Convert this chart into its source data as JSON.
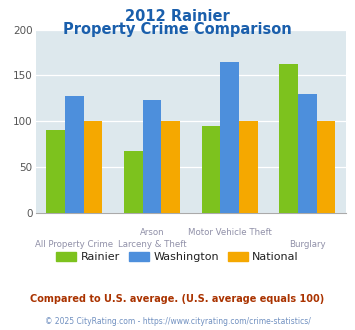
{
  "title_line1": "2012 Rainier",
  "title_line2": "Property Crime Comparison",
  "cat_labels_row1": [
    "",
    "Arson",
    "Motor Vehicle Theft",
    ""
  ],
  "cat_labels_row2": [
    "All Property Crime",
    "Larceny & Theft",
    "",
    "Burglary"
  ],
  "rainier": [
    91,
    67,
    95,
    162
  ],
  "washington": [
    128,
    123,
    165,
    130
  ],
  "national": [
    100,
    100,
    100,
    100
  ],
  "bar_colors": {
    "rainier": "#7dc21e",
    "washington": "#4d8fdc",
    "national": "#f5a800"
  },
  "ylim": [
    0,
    200
  ],
  "yticks": [
    0,
    50,
    100,
    150,
    200
  ],
  "background_color": "#dde8ed",
  "title_color": "#1a5fac",
  "xlabel_color": "#9090a8",
  "legend_text_color": "#222222",
  "legend_labels": [
    "Rainier",
    "Washington",
    "National"
  ],
  "footnote1": "Compared to U.S. average. (U.S. average equals 100)",
  "footnote2": "© 2025 CityRating.com - https://www.cityrating.com/crime-statistics/",
  "footnote1_color": "#aa3300",
  "footnote2_color": "#7090c0"
}
